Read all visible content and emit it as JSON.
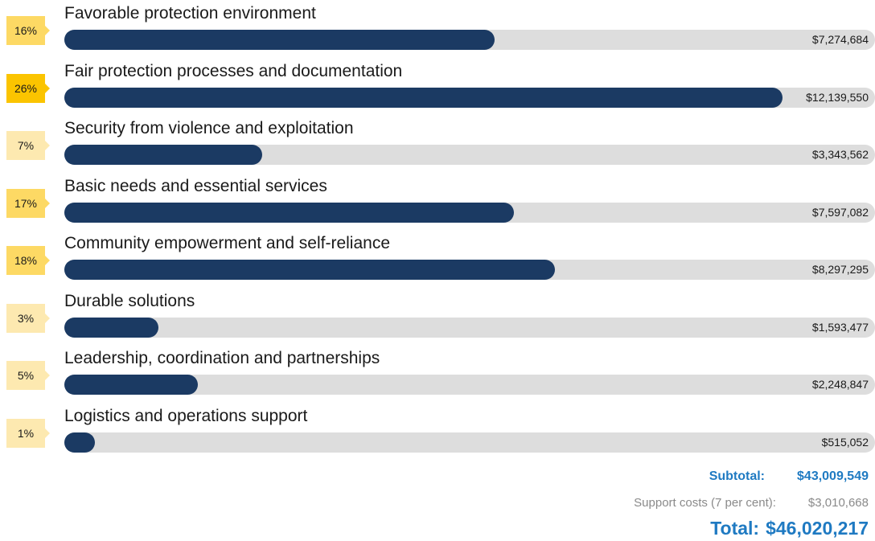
{
  "chart_data": {
    "type": "bar",
    "orientation": "horizontal",
    "categories": [
      "Favorable protection environment",
      "Fair protection processes and documentation",
      "Security from violence and exploitation",
      "Basic needs and essential services",
      "Community empowerment and self-reliance",
      "Durable solutions",
      "Leadership, coordination and partnerships",
      "Logistics and operations support"
    ],
    "values": [
      7274684,
      12139550,
      3343562,
      7597082,
      8297295,
      1593477,
      2248847,
      515052
    ],
    "value_labels": [
      "$7,274,684",
      "$12,139,550",
      "$3,343,562",
      "$7,597,082",
      "$8,297,295",
      "$1,593,477",
      "$2,248,847",
      "$515,052"
    ],
    "percent_labels": [
      "16%",
      "26%",
      "7%",
      "17%",
      "18%",
      "3%",
      "5%",
      "1%"
    ],
    "xlim": [
      0,
      12139550
    ],
    "grid": false,
    "title": "",
    "xlabel": "",
    "ylabel": ""
  },
  "colors": {
    "bar_fill": "#1b3a63",
    "track": "#dddddd",
    "badge_scale": [
      "#fde9b0",
      "#fdd964",
      "#fbc400"
    ],
    "summary_accent": "#1f7ac2",
    "summary_muted": "#8a8a8a"
  },
  "summary": {
    "subtotal_label": "Subtotal:",
    "subtotal_value": "$43,009,549",
    "support_label": "Support costs (7 per cent):",
    "support_value": "$3,010,668",
    "total_label": "Total:",
    "total_value": "$46,020,217"
  }
}
